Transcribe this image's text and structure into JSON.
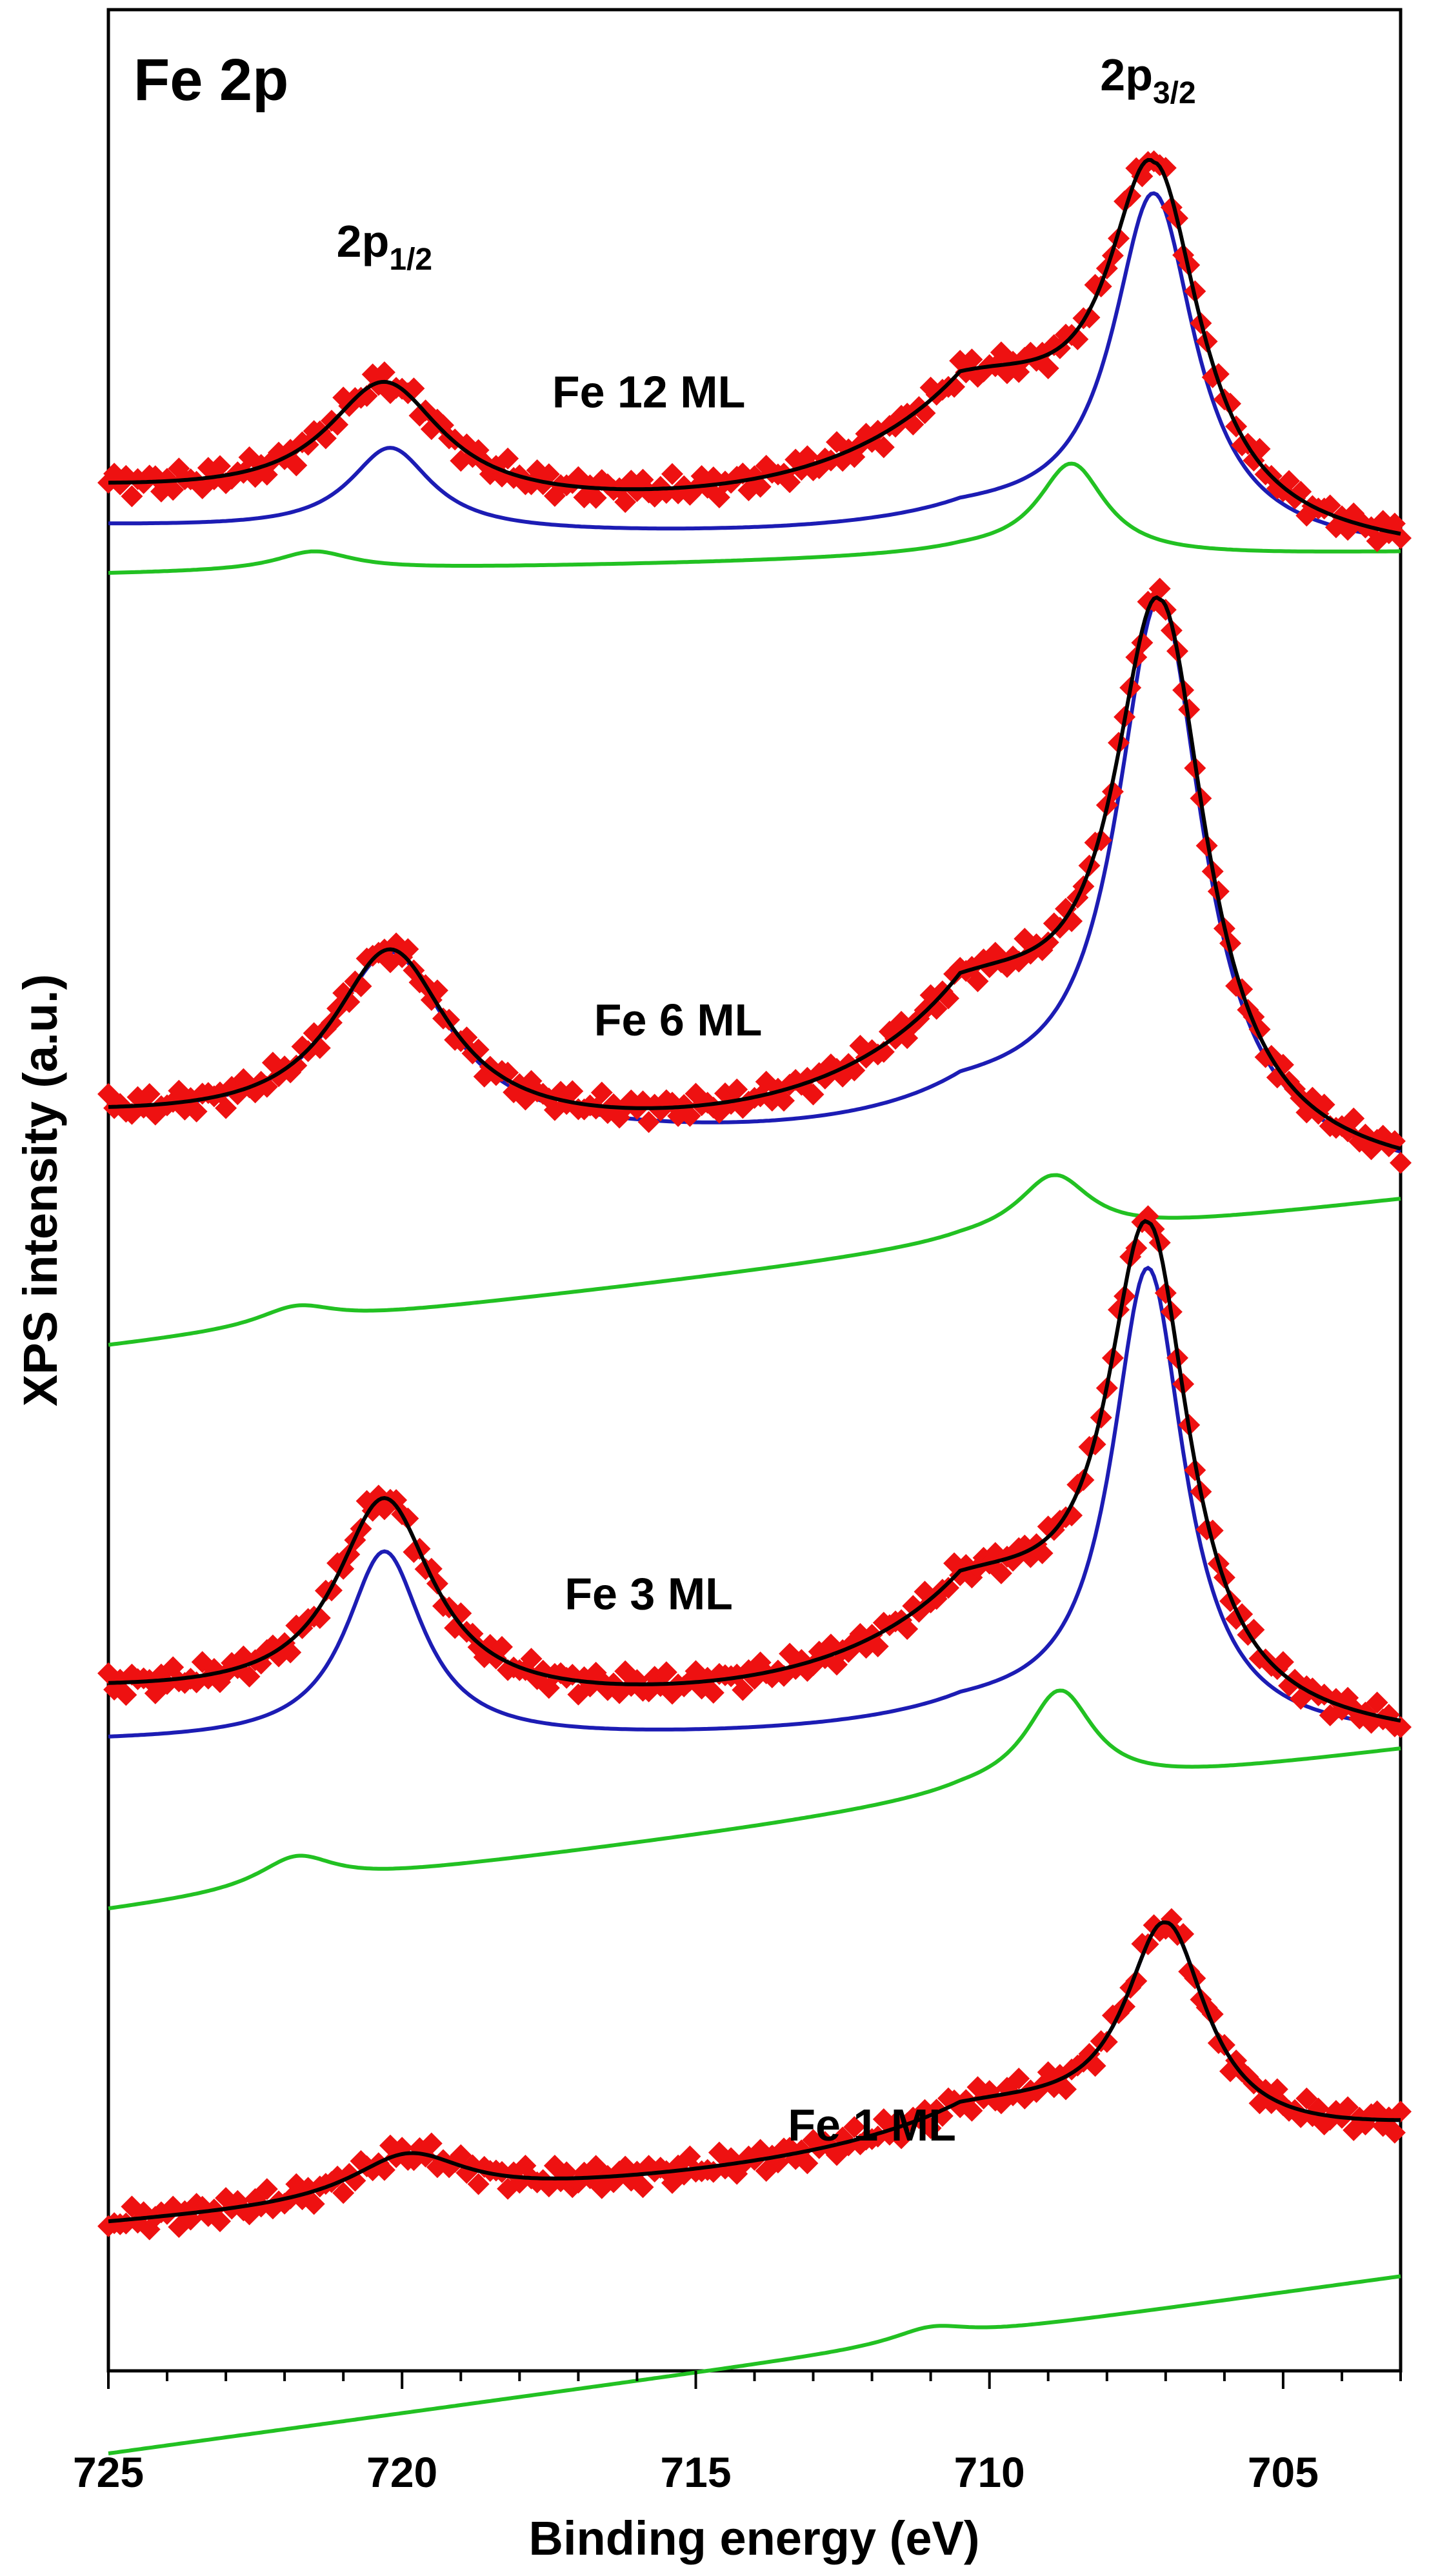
{
  "chart_data": {
    "type": "line",
    "title": "Fe 2p",
    "xlabel": "Binding energy (eV)",
    "ylabel": "XPS intensity (a.u.)",
    "xlim": [
      725,
      703
    ],
    "x_reversed": true,
    "ylim": [
      0,
      1
    ],
    "y_ticks_shown": false,
    "x_ticks_major": [
      725,
      720,
      715,
      710,
      705
    ],
    "x_tick_labels": [
      "725",
      "720",
      "715",
      "710",
      "705"
    ],
    "peak_labels": [
      {
        "base": "2p",
        "sub": "1/2",
        "x": 720.3
      },
      {
        "base": "2p",
        "sub": "3/2",
        "x": 707.3
      }
    ],
    "series_styles": {
      "data": "#ee1111",
      "total_fit": "#000000",
      "main_component": "#1c1cb4",
      "satellite_component": "#22c122"
    },
    "spectra": [
      {
        "name": "Fe 12 ML",
        "label_x": 715.8,
        "data": {
          "base_left": 0.796,
          "base_right": 0.77,
          "p12_center": 720.3,
          "p12_height": 0.05,
          "p12_width": 1.2,
          "p32_center": 707.2,
          "p32_height": 0.16,
          "p32_width": 0.95,
          "tail": 0.055,
          "tail_onset": 710.5
        },
        "main_component": {
          "base_left": 0.781,
          "base_right": 0.77,
          "p12_center": 720.2,
          "p12_height": 0.035,
          "p12_width": 0.85,
          "p32_center": 707.2,
          "p32_height": 0.15,
          "p32_width": 0.85,
          "tail": 0.01,
          "tail_onset": 710.5
        },
        "satellite_component": {
          "base_left": 0.761,
          "base_right": 0.77,
          "p12_center": 721.5,
          "p12_height": 0.008,
          "p12_width": 0.8,
          "p32_center": 708.6,
          "p32_height": 0.04,
          "p32_width": 0.7,
          "tail": 0.003,
          "tail_onset": 710.5
        }
      },
      {
        "name": "Fe 6 ML",
        "label_x": 715.3,
        "data": {
          "base_left": 0.53,
          "base_right": 0.505,
          "p12_center": 720.2,
          "p12_height": 0.075,
          "p12_width": 1.2,
          "p32_center": 707.1,
          "p32_height": 0.24,
          "p32_width": 0.95,
          "tail": 0.06,
          "tail_onset": 710.5
        },
        "main_component": {
          "base_left": 0.53,
          "base_right": 0.505,
          "p12_center": 720.2,
          "p12_height": 0.075,
          "p12_width": 1.2,
          "p32_center": 707.1,
          "p32_height": 0.24,
          "p32_width": 0.9,
          "tail": 0.02,
          "tail_onset": 710.5
        },
        "satellite_component": {
          "base_left": 0.434,
          "base_right": 0.496,
          "p12_center": 721.8,
          "p12_height": 0.008,
          "p12_width": 0.8,
          "p32_center": 708.9,
          "p32_height": 0.027,
          "p32_width": 0.75,
          "tail": 0.003,
          "tail_onset": 710.5
        }
      },
      {
        "name": "Fe 3 ML",
        "label_x": 715.8,
        "data": {
          "base_left": 0.287,
          "base_right": 0.267,
          "p12_center": 720.3,
          "p12_height": 0.085,
          "p12_width": 1.0,
          "p32_center": 707.3,
          "p32_height": 0.215,
          "p32_width": 0.85,
          "tail": 0.05,
          "tail_onset": 710.5
        },
        "main_component": {
          "base_left": 0.266,
          "base_right": 0.267,
          "p12_center": 720.3,
          "p12_height": 0.08,
          "p12_width": 0.8,
          "p32_center": 707.3,
          "p32_height": 0.2,
          "p32_width": 0.75,
          "tail": 0.01,
          "tail_onset": 710.5
        },
        "satellite_component": {
          "base_left": 0.195,
          "base_right": 0.263,
          "p12_center": 721.8,
          "p12_height": 0.013,
          "p12_width": 0.8,
          "p32_center": 708.8,
          "p32_height": 0.043,
          "p32_width": 0.7,
          "tail": 0.004,
          "tail_onset": 710.5
        }
      },
      {
        "name": "Fe 1 ML",
        "label_x": 712.0,
        "data": {
          "base_left": 0.062,
          "base_right": 0.102,
          "p12_center": 719.9,
          "p12_height": 0.02,
          "p12_width": 1.2,
          "p32_center": 707.0,
          "p32_height": 0.095,
          "p32_width": 0.85,
          "tail": 0.02,
          "tail_onset": 710.5
        },
        "main_component": {
          "base_left": 0.062,
          "base_right": 0.102,
          "p12_center": 719.9,
          "p12_height": 0.02,
          "p12_width": 1.2,
          "p32_center": 707.0,
          "p32_height": 0.095,
          "p32_width": 0.85,
          "tail": 0.02,
          "tail_onset": 710.5
        },
        "satellite_component": {
          "base_left": -0.035,
          "base_right": 0.04,
          "p12_center": 719.0,
          "p12_height": 0.0,
          "p12_width": 1.0,
          "p32_center": 711.0,
          "p32_height": 0.006,
          "p32_width": 0.8,
          "tail": 0.0,
          "tail_onset": 710.5
        }
      }
    ]
  }
}
